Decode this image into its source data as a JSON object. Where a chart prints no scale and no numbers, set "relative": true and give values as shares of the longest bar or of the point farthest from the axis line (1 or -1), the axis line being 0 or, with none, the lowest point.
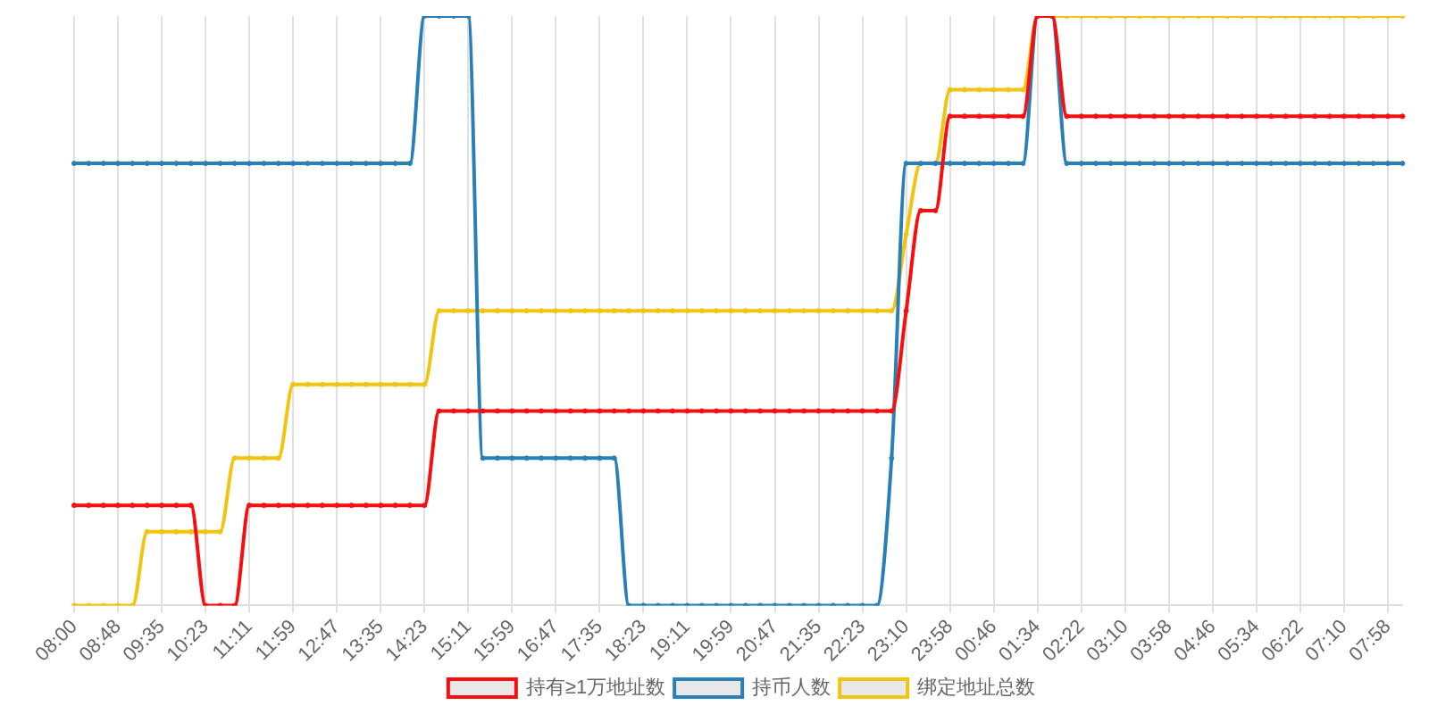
{
  "chart_data": {
    "type": "line",
    "relative": true,
    "grid": "x",
    "legend": "bottom",
    "marker": "circle",
    "categories": [
      "08:00",
      null,
      null,
      "08:48",
      null,
      null,
      "09:35",
      null,
      null,
      "10:23",
      null,
      null,
      "11:11",
      null,
      null,
      "11:59",
      null,
      null,
      "12:47",
      null,
      null,
      "13:35",
      null,
      null,
      "14:23",
      null,
      null,
      "15:11",
      null,
      null,
      "15:59",
      null,
      null,
      "16:47",
      null,
      null,
      "17:35",
      null,
      null,
      "18:23",
      null,
      null,
      "19:11",
      null,
      null,
      "19:59",
      null,
      null,
      "20:47",
      null,
      null,
      "21:35",
      null,
      null,
      "22:23",
      null,
      null,
      "23:10",
      null,
      null,
      "23:58",
      null,
      null,
      "00:46",
      null,
      null,
      "01:34",
      null,
      null,
      "02:22",
      null,
      null,
      "03:10",
      null,
      null,
      "03:58",
      null,
      null,
      "04:46",
      null,
      null,
      "05:34",
      null,
      null,
      "06:22",
      null,
      null,
      "07:10",
      null,
      null,
      "07:58",
      null
    ],
    "series": [
      {
        "name": "持有≥1万地址数",
        "color": "#f70f0f",
        "values": [
          0.17,
          0.17,
          0.17,
          0.17,
          0.17,
          0.17,
          0.17,
          0.17,
          0.17,
          0,
          0,
          0,
          0.17,
          0.17,
          0.17,
          0.17,
          0.17,
          0.17,
          0.17,
          0.17,
          0.17,
          0.17,
          0.17,
          0.17,
          0.17,
          0.33,
          0.33,
          0.33,
          0.33,
          0.33,
          0.33,
          0.33,
          0.33,
          0.33,
          0.33,
          0.33,
          0.33,
          0.33,
          0.33,
          0.33,
          0.33,
          0.33,
          0.33,
          0.33,
          0.33,
          0.33,
          0.33,
          0.33,
          0.33,
          0.33,
          0.33,
          0.33,
          0.33,
          0.33,
          0.33,
          0.33,
          0.33,
          0.5,
          0.67,
          0.67,
          0.83,
          0.83,
          0.83,
          0.83,
          0.83,
          0.83,
          1,
          1,
          0.83,
          0.83,
          0.83,
          0.83,
          0.83,
          0.83,
          0.83,
          0.83,
          0.83,
          0.83,
          0.83,
          0.83,
          0.83,
          0.83,
          0.83,
          0.83,
          0.83,
          0.83,
          0.83,
          0.83,
          0.83,
          0.83,
          0.83,
          0.83
        ]
      },
      {
        "name": "持币人数",
        "color": "#2980b9",
        "values": [
          0.75,
          0.75,
          0.75,
          0.75,
          0.75,
          0.75,
          0.75,
          0.75,
          0.75,
          0.75,
          0.75,
          0.75,
          0.75,
          0.75,
          0.75,
          0.75,
          0.75,
          0.75,
          0.75,
          0.75,
          0.75,
          0.75,
          0.75,
          0.75,
          1,
          1,
          1,
          1,
          0.25,
          0.25,
          0.25,
          0.25,
          0.25,
          0.25,
          0.25,
          0.25,
          0.25,
          0.25,
          0,
          0,
          0,
          0,
          0,
          0,
          0,
          0,
          0,
          0,
          0,
          0,
          0,
          0,
          0,
          0,
          0,
          0,
          0.25,
          0.75,
          0.75,
          0.75,
          0.75,
          0.75,
          0.75,
          0.75,
          0.75,
          0.75,
          1,
          1,
          0.75,
          0.75,
          0.75,
          0.75,
          0.75,
          0.75,
          0.75,
          0.75,
          0.75,
          0.75,
          0.75,
          0.75,
          0.75,
          0.75,
          0.75,
          0.75,
          0.75,
          0.75,
          0.75,
          0.75,
          0.75,
          0.75,
          0.75,
          0.75
        ]
      },
      {
        "name": "绑定地址总数",
        "color": "#f1c40f",
        "values": [
          0,
          0,
          0,
          0,
          0,
          0.125,
          0.125,
          0.125,
          0.125,
          0.125,
          0.125,
          0.25,
          0.25,
          0.25,
          0.25,
          0.375,
          0.375,
          0.375,
          0.375,
          0.375,
          0.375,
          0.375,
          0.375,
          0.375,
          0.375,
          0.5,
          0.5,
          0.5,
          0.5,
          0.5,
          0.5,
          0.5,
          0.5,
          0.5,
          0.5,
          0.5,
          0.5,
          0.5,
          0.5,
          0.5,
          0.5,
          0.5,
          0.5,
          0.5,
          0.5,
          0.5,
          0.5,
          0.5,
          0.5,
          0.5,
          0.5,
          0.5,
          0.5,
          0.5,
          0.5,
          0.5,
          0.5,
          0.63,
          0.75,
          0.75,
          0.875,
          0.875,
          0.875,
          0.875,
          0.875,
          0.875,
          1,
          1,
          1,
          1,
          1,
          1,
          1,
          1,
          1,
          1,
          1,
          1,
          1,
          1,
          1,
          1,
          1,
          1,
          1,
          1,
          1,
          1,
          1,
          1,
          1,
          1
        ]
      }
    ]
  }
}
